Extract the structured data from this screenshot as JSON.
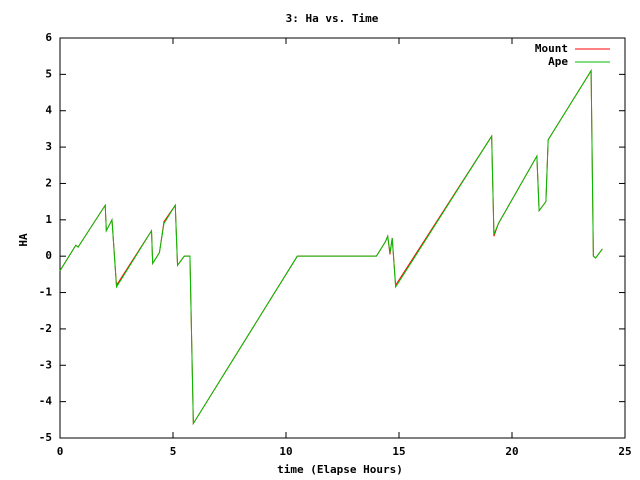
{
  "chart_data": {
    "type": "line",
    "title": "3: Ha vs. Time",
    "x_label": "time (Elapse Hours)",
    "y_label": "HA",
    "x": [
      0,
      0.7,
      0.8,
      2.0,
      2.05,
      2.3,
      2.5,
      4.05,
      4.1,
      4.4,
      4.6,
      5.1,
      5.2,
      5.5,
      5.75,
      5.9,
      10.5,
      14.0,
      14.4,
      14.5,
      14.6,
      14.7,
      14.85,
      19.1,
      19.2,
      19.4,
      21.1,
      21.2,
      21.5,
      21.6,
      21.8,
      23.5,
      23.6,
      23.7,
      24.0
    ],
    "series": [
      {
        "name": "Mount",
        "color": "#ff0000",
        "values": [
          -0.4,
          0.3,
          0.25,
          1.4,
          0.7,
          1.0,
          -0.8,
          0.7,
          -0.2,
          0.1,
          0.95,
          1.4,
          -0.25,
          0,
          0,
          -4.6,
          0,
          0,
          0.4,
          0.55,
          0.05,
          0.5,
          -0.8,
          3.3,
          0.55,
          0.9,
          2.75,
          1.25,
          1.5,
          3.2,
          3.4,
          5.1,
          0,
          -0.05,
          0.2
        ]
      },
      {
        "name": "Ape",
        "color": "#00c000",
        "values": [
          -0.4,
          0.3,
          0.25,
          1.4,
          0.7,
          1.0,
          -0.85,
          0.7,
          -0.2,
          0.1,
          0.9,
          1.4,
          -0.25,
          0,
          0,
          -4.6,
          0,
          0,
          0.4,
          0.55,
          0.1,
          0.5,
          -0.85,
          3.3,
          0.6,
          0.9,
          2.75,
          1.25,
          1.5,
          3.2,
          3.4,
          5.1,
          0,
          -0.05,
          0.2
        ]
      }
    ],
    "xlim": [
      0,
      25
    ],
    "xticks": [
      0,
      5,
      10,
      15,
      20,
      25
    ],
    "ylim": [
      -5,
      6
    ],
    "yticks": [
      -5,
      -4,
      -3,
      -2,
      -1,
      0,
      1,
      2,
      3,
      4,
      5,
      6
    ],
    "grid": false,
    "legend": "top-right"
  }
}
